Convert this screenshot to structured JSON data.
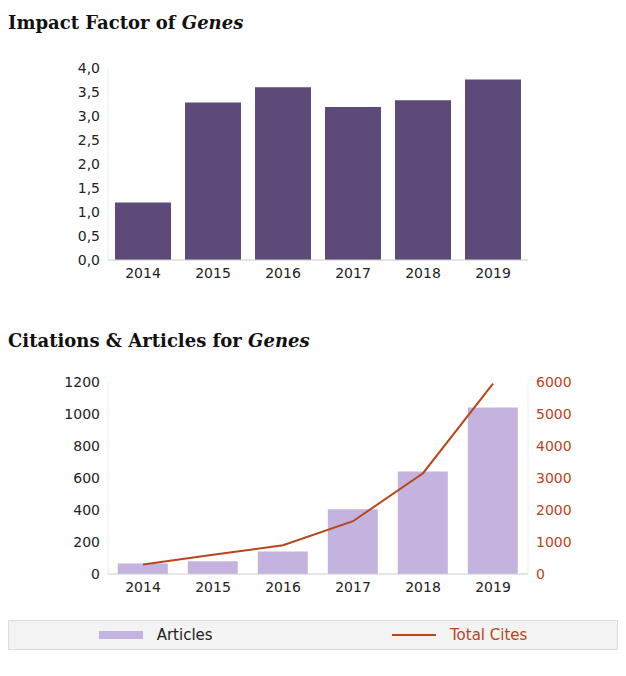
{
  "chart_data": [
    {
      "type": "bar",
      "title": "Impact Factor of Genes",
      "categories": [
        "2014",
        "2015",
        "2016",
        "2017",
        "2018",
        "2019"
      ],
      "values": [
        1.2,
        3.28,
        3.6,
        3.19,
        3.33,
        3.76
      ],
      "color": "#5d4a78",
      "ylim": [
        0,
        4
      ],
      "yticks": [
        {
          "value": 0,
          "label": "0,0"
        },
        {
          "value": 0.5,
          "label": "0,5"
        },
        {
          "value": 1,
          "label": "1,0"
        },
        {
          "value": 1.5,
          "label": "1,5"
        },
        {
          "value": 2,
          "label": "2,0"
        },
        {
          "value": 2.5,
          "label": "2,5"
        },
        {
          "value": 3,
          "label": "3,0"
        },
        {
          "value": 3.5,
          "label": "3,5"
        },
        {
          "value": 4,
          "label": "4,0"
        }
      ],
      "grid": false
    },
    {
      "type": "bar",
      "title": "Citations & Articles for Genes",
      "categories": [
        "2014",
        "2015",
        "2016",
        "2017",
        "2018",
        "2019"
      ],
      "series": [
        {
          "name": "Articles",
          "type": "bar",
          "color": "#c4b3de",
          "values": [
            65,
            80,
            140,
            405,
            640,
            1040
          ]
        },
        {
          "name": "Total Cites",
          "type": "line",
          "axis": "y2",
          "color": "#b8461a",
          "values": [
            300,
            600,
            900,
            1650,
            3150,
            5950
          ]
        }
      ],
      "ylim": [
        0,
        1200
      ],
      "yticks": [
        0,
        200,
        400,
        600,
        800,
        1000,
        1200
      ],
      "y2lim": [
        0,
        6000
      ],
      "y2ticks": [
        0,
        1000,
        2000,
        3000,
        4000,
        5000,
        6000
      ],
      "grid": false,
      "legend": "bottom"
    }
  ]
}
